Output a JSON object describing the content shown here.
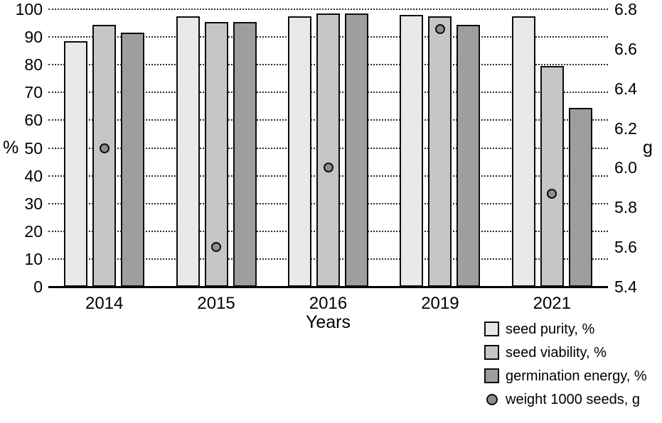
{
  "chart_data": {
    "type": "bar",
    "title": "",
    "xlabel": "Years",
    "categories": [
      "2014",
      "2015",
      "2016",
      "2019",
      "2021"
    ],
    "series": [
      {
        "name": "seed purity, %",
        "axis": "left",
        "color": "#e9e9e9",
        "values": [
          88.5,
          97.5,
          97.5,
          98,
          97.5
        ]
      },
      {
        "name": "seed viability, %",
        "axis": "left",
        "color": "#c6c6c6",
        "values": [
          94.5,
          95.5,
          98.5,
          97.5,
          79.5
        ]
      },
      {
        "name": "germination energy, %",
        "axis": "left",
        "color": "#9e9e9e",
        "values": [
          91.5,
          95.5,
          98.5,
          94.5,
          64.5
        ]
      }
    ],
    "points": {
      "name": "weight 1000 seeds, g",
      "type": "scatter",
      "axis": "right",
      "color": "#8f8f8f",
      "values": [
        6.1,
        5.6,
        6.0,
        6.7,
        5.87
      ]
    },
    "left_axis": {
      "label": "%",
      "min": 0,
      "max": 100,
      "step": 10,
      "ticks": [
        "0",
        "10",
        "20",
        "30",
        "40",
        "50",
        "60",
        "70",
        "80",
        "90",
        "100"
      ]
    },
    "right_axis": {
      "label": "g",
      "min": 5.4,
      "max": 6.8,
      "step": 0.2,
      "ticks": [
        "5.4",
        "5.6",
        "5.8",
        "6.0",
        "6.2",
        "6.4",
        "6.6",
        "6.8"
      ]
    },
    "grid": "horizontal-dotted",
    "legend_position": "bottom-right"
  },
  "legend": {
    "items": [
      {
        "label": "seed purity, %",
        "swatch": "square",
        "color": "#e9e9e9"
      },
      {
        "label": "seed viability, %",
        "swatch": "square",
        "color": "#c6c6c6"
      },
      {
        "label": "germination energy, %",
        "swatch": "square",
        "color": "#9e9e9e"
      },
      {
        "label": "weight 1000 seeds, g",
        "swatch": "circle",
        "color": "#8f8f8f"
      }
    ]
  }
}
